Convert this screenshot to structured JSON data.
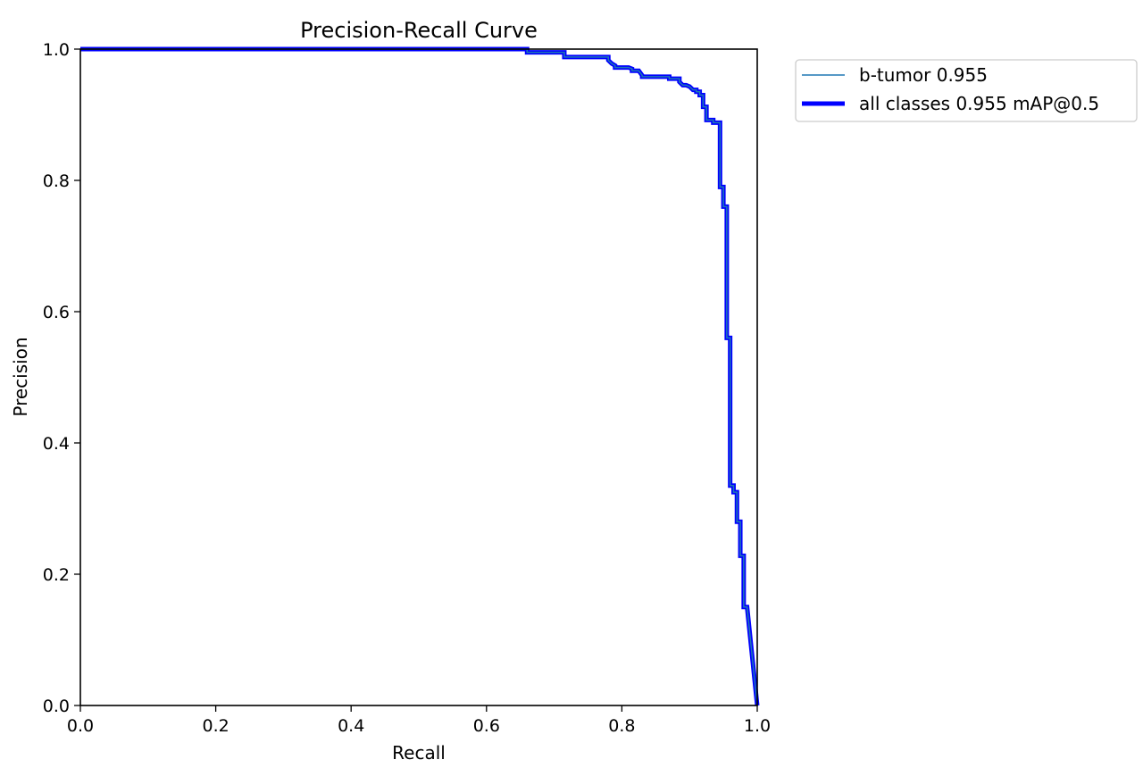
{
  "chart_data": {
    "type": "line",
    "title": "Precision-Recall Curve",
    "xlabel": "Recall",
    "ylabel": "Precision",
    "xlim": [
      0,
      1
    ],
    "ylim": [
      0,
      1
    ],
    "xticks": [
      {
        "value": 0.0,
        "label": "0.0"
      },
      {
        "value": 0.2,
        "label": "0.2"
      },
      {
        "value": 0.4,
        "label": "0.4"
      },
      {
        "value": 0.6,
        "label": "0.6"
      },
      {
        "value": 0.8,
        "label": "0.8"
      },
      {
        "value": 1.0,
        "label": "1.0"
      }
    ],
    "yticks": [
      {
        "value": 0.0,
        "label": "0.0"
      },
      {
        "value": 0.2,
        "label": "0.2"
      },
      {
        "value": 0.4,
        "label": "0.4"
      },
      {
        "value": 0.6,
        "label": "0.6"
      },
      {
        "value": 0.8,
        "label": "0.8"
      },
      {
        "value": 1.0,
        "label": "1.0"
      }
    ],
    "grid": false,
    "legend_position": "outside top-right",
    "series": [
      {
        "name": "b-tumor 0.955",
        "color": "#1f77b4",
        "line_weight": "thin",
        "x": [
          0.0,
          0.66,
          0.66,
          0.715,
          0.715,
          0.78,
          0.78,
          0.785,
          0.79,
          0.79,
          0.81,
          0.815,
          0.815,
          0.825,
          0.83,
          0.83,
          0.87,
          0.87,
          0.885,
          0.885,
          0.89,
          0.895,
          0.9,
          0.905,
          0.91,
          0.91,
          0.915,
          0.915,
          0.92,
          0.92,
          0.925,
          0.925,
          0.935,
          0.935,
          0.945,
          0.945,
          0.95,
          0.95,
          0.955,
          0.955,
          0.96,
          0.96,
          0.965,
          0.965,
          0.97,
          0.97,
          0.975,
          0.975,
          0.98,
          0.98,
          0.985,
          1.0
        ],
        "y": [
          1.0,
          1.0,
          0.995,
          0.995,
          0.988,
          0.988,
          0.983,
          0.978,
          0.975,
          0.972,
          0.972,
          0.97,
          0.967,
          0.967,
          0.96,
          0.958,
          0.958,
          0.955,
          0.955,
          0.95,
          0.945,
          0.945,
          0.943,
          0.938,
          0.938,
          0.935,
          0.935,
          0.93,
          0.93,
          0.912,
          0.912,
          0.892,
          0.892,
          0.888,
          0.888,
          0.79,
          0.79,
          0.76,
          0.76,
          0.56,
          0.56,
          0.335,
          0.335,
          0.325,
          0.325,
          0.28,
          0.28,
          0.228,
          0.228,
          0.15,
          0.15,
          0.0
        ]
      },
      {
        "name": "all classes 0.955 mAP@0.5",
        "color": "#0000ff",
        "line_weight": "thick",
        "x": [
          0.0,
          0.66,
          0.66,
          0.715,
          0.715,
          0.78,
          0.78,
          0.785,
          0.79,
          0.79,
          0.81,
          0.815,
          0.815,
          0.825,
          0.83,
          0.83,
          0.87,
          0.87,
          0.885,
          0.885,
          0.89,
          0.895,
          0.9,
          0.905,
          0.91,
          0.91,
          0.915,
          0.915,
          0.92,
          0.92,
          0.925,
          0.925,
          0.935,
          0.935,
          0.945,
          0.945,
          0.95,
          0.95,
          0.955,
          0.955,
          0.96,
          0.96,
          0.965,
          0.965,
          0.97,
          0.97,
          0.975,
          0.975,
          0.98,
          0.98,
          0.985,
          1.0
        ],
        "y": [
          1.0,
          1.0,
          0.995,
          0.995,
          0.988,
          0.988,
          0.983,
          0.978,
          0.975,
          0.972,
          0.972,
          0.97,
          0.967,
          0.967,
          0.96,
          0.958,
          0.958,
          0.955,
          0.955,
          0.95,
          0.945,
          0.945,
          0.943,
          0.938,
          0.938,
          0.935,
          0.935,
          0.93,
          0.93,
          0.912,
          0.912,
          0.892,
          0.892,
          0.888,
          0.888,
          0.79,
          0.79,
          0.76,
          0.76,
          0.56,
          0.56,
          0.335,
          0.335,
          0.325,
          0.325,
          0.28,
          0.28,
          0.228,
          0.228,
          0.15,
          0.15,
          0.0
        ]
      }
    ]
  }
}
